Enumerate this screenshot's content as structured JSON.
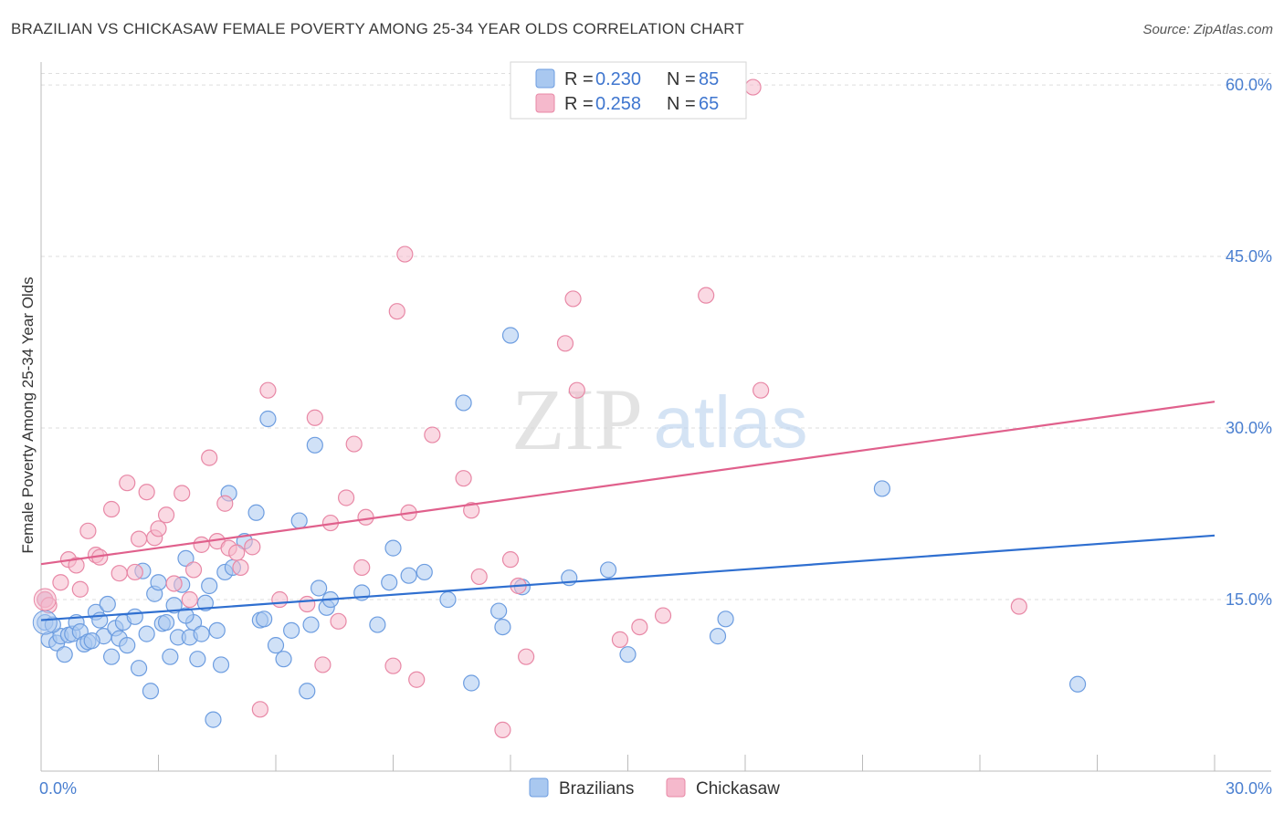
{
  "header": {
    "title": "BRAZILIAN VS CHICKASAW FEMALE POVERTY AMONG 25-34 YEAR OLDS CORRELATION CHART",
    "source": "Source: ZipAtlas.com"
  },
  "watermark": {
    "zip": "ZIP",
    "atlas": "atlas"
  },
  "legend": {
    "r_label": "R =",
    "n_label": "N =",
    "items": [
      {
        "r": "0.230",
        "n": "85",
        "color": "#a9c8f0"
      },
      {
        "r": "0.258",
        "n": "65",
        "color": "#f5b9cc"
      }
    ]
  },
  "chart_data": {
    "type": "scatter",
    "title": "BRAZILIAN VS CHICKASAW FEMALE POVERTY AMONG 25-34 YEAR OLDS CORRELATION CHART",
    "xlabel": "",
    "ylabel": "Female Poverty Among 25-34 Year Olds",
    "xlim": [
      0,
      30
    ],
    "ylim": [
      0,
      62
    ],
    "x_tick_labels": [
      "0.0%",
      "30.0%"
    ],
    "y_ticks": [
      15,
      30,
      45,
      60
    ],
    "y_tick_labels": [
      "15.0%",
      "30.0%",
      "45.0%",
      "60.0%"
    ],
    "grid": true,
    "legend_position": "top-center",
    "series": [
      {
        "name": "Brazilians",
        "color": "#a9c8f0",
        "stroke": "#6d9de0",
        "trend": {
          "x": [
            0,
            30
          ],
          "y": [
            13.2,
            20.6
          ],
          "color": "#2f6fd0"
        },
        "points": [
          [
            0.1,
            15
          ],
          [
            0.1,
            13
          ],
          [
            0.2,
            11.5
          ],
          [
            0.4,
            11.2
          ],
          [
            0.5,
            11.8
          ],
          [
            0.6,
            10.2
          ],
          [
            0.7,
            11.9
          ],
          [
            0.8,
            12
          ],
          [
            0.9,
            13
          ],
          [
            1.0,
            12.2
          ],
          [
            1.1,
            11.1
          ],
          [
            1.2,
            11.3
          ],
          [
            1.4,
            13.9
          ],
          [
            1.5,
            13.2
          ],
          [
            1.6,
            11.8
          ],
          [
            1.7,
            14.6
          ],
          [
            1.8,
            10
          ],
          [
            1.9,
            12.5
          ],
          [
            2.0,
            11.6
          ],
          [
            2.1,
            13
          ],
          [
            2.2,
            11
          ],
          [
            2.4,
            13.5
          ],
          [
            2.5,
            9
          ],
          [
            2.6,
            17.5
          ],
          [
            2.7,
            12
          ],
          [
            2.8,
            7
          ],
          [
            2.9,
            15.5
          ],
          [
            3.0,
            16.5
          ],
          [
            3.1,
            12.9
          ],
          [
            3.2,
            13
          ],
          [
            3.3,
            10
          ],
          [
            3.4,
            14.5
          ],
          [
            3.5,
            11.7
          ],
          [
            3.6,
            16.3
          ],
          [
            3.7,
            18.6
          ],
          [
            3.8,
            11.7
          ],
          [
            3.9,
            13
          ],
          [
            4.0,
            9.8
          ],
          [
            4.1,
            12
          ],
          [
            4.2,
            14.7
          ],
          [
            4.3,
            16.2
          ],
          [
            4.4,
            4.5
          ],
          [
            4.5,
            12.3
          ],
          [
            4.6,
            9.3
          ],
          [
            4.7,
            17.4
          ],
          [
            4.8,
            24.3
          ],
          [
            4.9,
            17.8
          ],
          [
            5.2,
            20.1
          ],
          [
            5.5,
            22.6
          ],
          [
            5.6,
            13.2
          ],
          [
            5.7,
            13.3
          ],
          [
            5.8,
            30.8
          ],
          [
            6.0,
            11
          ],
          [
            6.2,
            9.8
          ],
          [
            6.4,
            12.3
          ],
          [
            6.6,
            21.9
          ],
          [
            6.8,
            7
          ],
          [
            6.9,
            12.8
          ],
          [
            7.0,
            28.5
          ],
          [
            7.1,
            16
          ],
          [
            7.3,
            14.3
          ],
          [
            7.4,
            15
          ],
          [
            8.2,
            15.6
          ],
          [
            8.6,
            12.8
          ],
          [
            8.9,
            16.5
          ],
          [
            9.0,
            19.5
          ],
          [
            9.4,
            17.1
          ],
          [
            9.8,
            17.4
          ],
          [
            10.4,
            15
          ],
          [
            10.8,
            32.2
          ],
          [
            11.0,
            7.7
          ],
          [
            11.7,
            14
          ],
          [
            11.8,
            12.6
          ],
          [
            12.0,
            38.1
          ],
          [
            12.3,
            16.1
          ],
          [
            13.5,
            16.9
          ],
          [
            14.5,
            17.6
          ],
          [
            15.0,
            10.2
          ],
          [
            17.3,
            11.8
          ],
          [
            17.5,
            13.3
          ],
          [
            21.5,
            24.7
          ],
          [
            26.5,
            7.6
          ],
          [
            0.3,
            12.8
          ],
          [
            1.3,
            11.4
          ],
          [
            3.7,
            13.6
          ]
        ]
      },
      {
        "name": "Chickasaw",
        "color": "#f5b9cc",
        "stroke": "#e888a6",
        "trend": {
          "x": [
            0,
            30
          ],
          "y": [
            18.1,
            32.3
          ],
          "color": "#e0608c"
        },
        "points": [
          [
            0.1,
            15
          ],
          [
            0.2,
            14.5
          ],
          [
            0.5,
            16.5
          ],
          [
            0.7,
            18.5
          ],
          [
            0.9,
            18
          ],
          [
            1.0,
            15.9
          ],
          [
            1.2,
            21
          ],
          [
            1.4,
            18.9
          ],
          [
            1.5,
            18.7
          ],
          [
            1.8,
            22.9
          ],
          [
            2.0,
            17.3
          ],
          [
            2.2,
            25.2
          ],
          [
            2.4,
            17.4
          ],
          [
            2.5,
            20.3
          ],
          [
            2.7,
            24.4
          ],
          [
            2.9,
            20.4
          ],
          [
            3.0,
            21.2
          ],
          [
            3.2,
            22.4
          ],
          [
            3.4,
            16.4
          ],
          [
            3.6,
            24.3
          ],
          [
            3.8,
            15
          ],
          [
            3.9,
            17.6
          ],
          [
            4.1,
            19.8
          ],
          [
            4.3,
            27.4
          ],
          [
            4.5,
            20.1
          ],
          [
            4.7,
            23.4
          ],
          [
            4.8,
            19.5
          ],
          [
            5.0,
            19.1
          ],
          [
            5.1,
            17.8
          ],
          [
            5.4,
            19.6
          ],
          [
            5.6,
            5.4
          ],
          [
            5.8,
            33.3
          ],
          [
            6.1,
            15
          ],
          [
            6.8,
            14.6
          ],
          [
            7.0,
            30.9
          ],
          [
            7.2,
            9.3
          ],
          [
            7.4,
            21.7
          ],
          [
            7.6,
            13.1
          ],
          [
            7.8,
            23.9
          ],
          [
            8.0,
            28.6
          ],
          [
            8.2,
            17.8
          ],
          [
            8.3,
            22.2
          ],
          [
            9.0,
            9.2
          ],
          [
            9.1,
            40.2
          ],
          [
            9.3,
            45.2
          ],
          [
            9.4,
            22.6
          ],
          [
            9.6,
            8
          ],
          [
            10.0,
            29.4
          ],
          [
            10.8,
            25.6
          ],
          [
            11.0,
            22.8
          ],
          [
            11.2,
            17
          ],
          [
            11.8,
            3.6
          ],
          [
            12.0,
            18.5
          ],
          [
            12.2,
            16.2
          ],
          [
            12.4,
            10
          ],
          [
            13.4,
            37.4
          ],
          [
            13.6,
            41.3
          ],
          [
            13.7,
            33.3
          ],
          [
            14.8,
            11.5
          ],
          [
            15.3,
            12.6
          ],
          [
            15.9,
            13.6
          ],
          [
            17.0,
            41.6
          ],
          [
            18.2,
            59.8
          ],
          [
            18.4,
            33.3
          ],
          [
            25.0,
            14.4
          ]
        ]
      }
    ]
  },
  "bottom_legend": [
    "Brazilians",
    "Chickasaw"
  ]
}
